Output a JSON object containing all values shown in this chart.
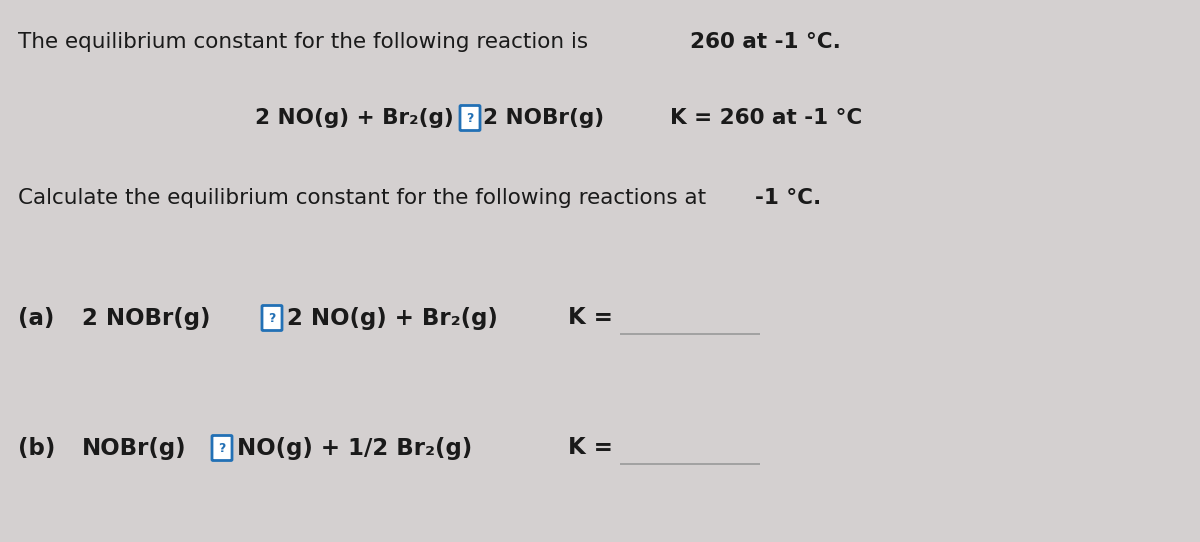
{
  "bg_color": "#d4d0d0",
  "text_color": "#1a1a1a",
  "question_box_border": "#2270b5",
  "question_box_bg": "#ffffff",
  "answer_line_color": "#999999",
  "font_size_title": 15.5,
  "font_size_reaction": 15.5,
  "font_size_calc": 15.5,
  "font_size_parts": 16.5,
  "title_normal": "The equilibrium constant for the following reaction is ",
  "title_bold": "260 at -1 °C.",
  "rxn_reactant": "2 NO(g) + Br₂(g)",
  "rxn_product": "2 NOBr(g)",
  "rxn_K": "K = 260 at -1 °C",
  "calc_normal": "Calculate the equilibrium constant for the following reactions at ",
  "calc_bold": "-1 °C.",
  "a_label": "(a)",
  "a_reactant": "2 NOBr(g)",
  "a_product": "2 NO(g) + Br₂(g)",
  "a_K": "K =",
  "b_label": "(b)",
  "b_reactant": "NOBr(g)",
  "b_product": "NO(g) + 1/2 Br₂(g)",
  "b_K": "K ="
}
